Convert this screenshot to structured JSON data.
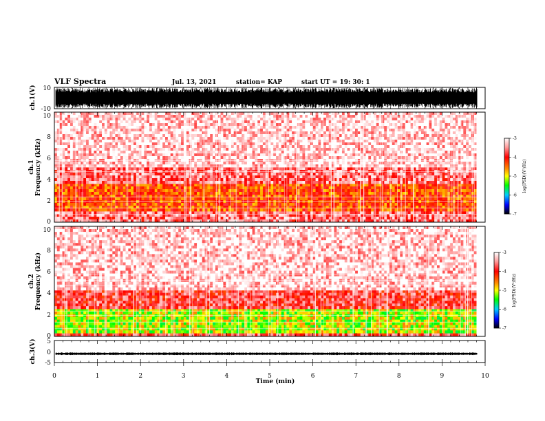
{
  "header": {
    "title": "VLF Spectra",
    "date": "Jul. 13, 2021",
    "station": "station= KAP",
    "start": "start UT = 19: 30: 1"
  },
  "chart_data": [
    {
      "type": "line",
      "panel": "ch1-waveform",
      "ylabel": "ch.1(V)",
      "ylim": [
        -10,
        10
      ],
      "yticks": [
        "10",
        "-10"
      ],
      "xlim": [
        0,
        10
      ],
      "note_level": "dense broadband signal spanning nearly full ±10 V range"
    },
    {
      "type": "heatmap",
      "panel": "ch1-spectrogram",
      "ylabel": "ch.1 Frequency (kHz)",
      "ylabel_line1": "ch.1",
      "ylabel_line2": "Frequency (kHz)",
      "ylim": [
        0,
        10
      ],
      "yticks": [
        "0",
        "2",
        "4",
        "6",
        "8",
        "10"
      ],
      "xlim": [
        0,
        9.8
      ],
      "bands": [
        {
          "from": 0.0,
          "to": 1.0,
          "level": -3.6
        },
        {
          "from": 1.0,
          "to": 3.5,
          "level": -4.3
        },
        {
          "from": 3.5,
          "to": 5.0,
          "level": -3.6
        },
        {
          "from": 5.0,
          "to": 10.0,
          "level": -3.2
        }
      ]
    },
    {
      "type": "heatmap",
      "panel": "ch2-spectrogram",
      "ylabel": "ch.2 Frequency (kHz)",
      "ylabel_line1": "ch.2",
      "ylabel_line2": "Frequency (kHz)",
      "ylim": [
        0,
        10
      ],
      "yticks": [
        "0",
        "2",
        "4",
        "6",
        "8",
        "10"
      ],
      "xlim": [
        0,
        9.8
      ],
      "bands": [
        {
          "from": 0.0,
          "to": 0.3,
          "level": -3.8
        },
        {
          "from": 0.3,
          "to": 2.5,
          "level": -5.1
        },
        {
          "from": 2.5,
          "to": 4.2,
          "level": -3.8
        },
        {
          "from": 4.2,
          "to": 10.0,
          "level": -3.2
        }
      ]
    },
    {
      "type": "line",
      "panel": "ch3-waveform",
      "ylabel": "ch.3(V)",
      "ylim": [
        -5,
        5
      ],
      "yticks": [
        "5",
        "0",
        "-5"
      ],
      "xlim": [
        0,
        10
      ],
      "note_level": "narrow signal near -1 V"
    }
  ],
  "colorbars": [
    {
      "label": "log(PSD)(V²/Hz)",
      "range": [
        -7,
        -3
      ],
      "ticks": [
        "-3",
        "-4",
        "-5",
        "-6",
        "-7"
      ]
    },
    {
      "label": "log(PSD)(V²/Hz)",
      "range": [
        -7,
        -3
      ],
      "ticks": [
        "-3",
        "-4",
        "-5",
        "-6",
        "-7"
      ]
    }
  ],
  "colors": {
    "high": "#ffffff",
    "red": "#ff0000",
    "yellow": "#ffff00",
    "green": "#00ff00",
    "blue": "#0000ff",
    "low": "#000000"
  },
  "xaxis": {
    "label": "Time (min)",
    "ticks": [
      "0",
      "1",
      "2",
      "3",
      "4",
      "5",
      "6",
      "7",
      "8",
      "9",
      "10"
    ]
  }
}
